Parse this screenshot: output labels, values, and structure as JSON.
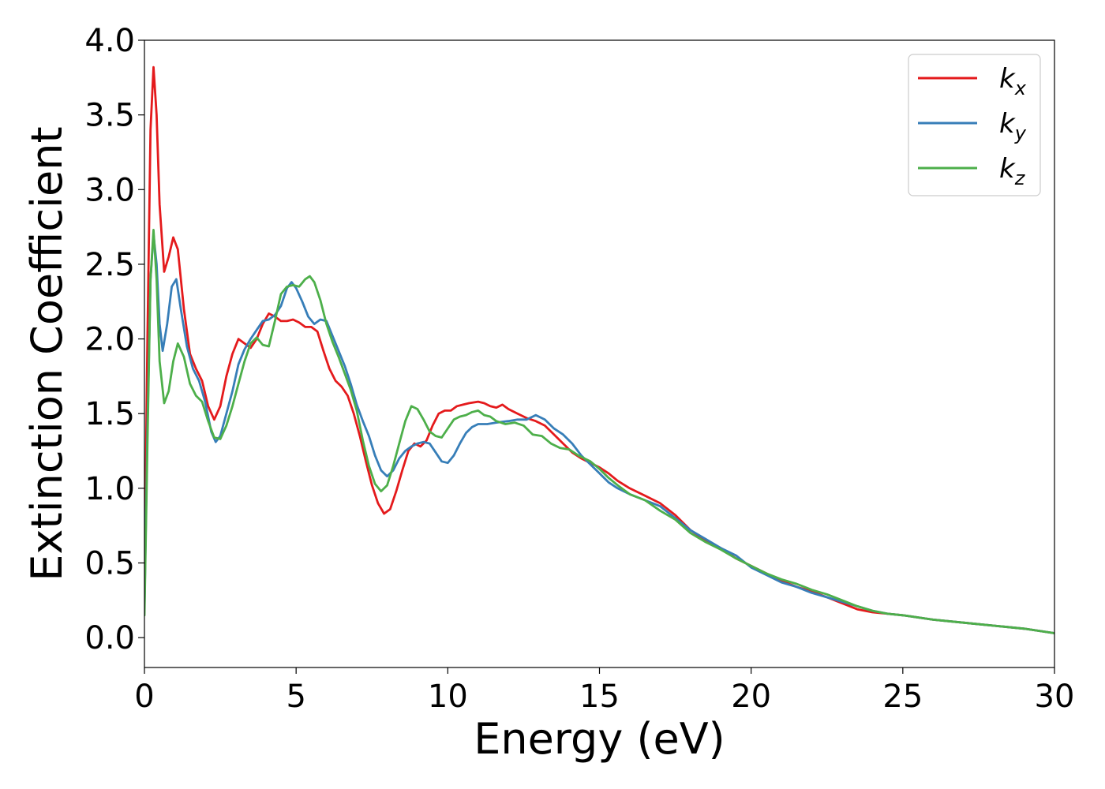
{
  "chart_data": {
    "type": "line",
    "title": "",
    "xlabel": "Energy (eV)",
    "ylabel": "Extinction Coefficient",
    "xlim": [
      0,
      30
    ],
    "ylim": [
      -0.2,
      4.0
    ],
    "xticks": [
      0,
      5,
      10,
      15,
      20,
      25,
      30
    ],
    "xtick_labels": [
      "0",
      "5",
      "10",
      "15",
      "20",
      "25",
      "30"
    ],
    "yticks": [
      0.0,
      0.5,
      1.0,
      1.5,
      2.0,
      2.5,
      3.0,
      3.5,
      4.0
    ],
    "ytick_labels": [
      "0.0",
      "0.5",
      "1.0",
      "1.5",
      "2.0",
      "2.5",
      "3.0",
      "3.5",
      "4.0"
    ],
    "grid": false,
    "legend_position": "top-right",
    "series": [
      {
        "name": "k",
        "subscript": "x",
        "color": "#e41a1c",
        "points": [
          [
            0,
            0.3
          ],
          [
            0.1,
            2.0
          ],
          [
            0.2,
            3.4
          ],
          [
            0.3,
            3.82
          ],
          [
            0.4,
            3.5
          ],
          [
            0.5,
            2.9
          ],
          [
            0.65,
            2.45
          ],
          [
            0.8,
            2.55
          ],
          [
            0.95,
            2.68
          ],
          [
            1.1,
            2.6
          ],
          [
            1.3,
            2.2
          ],
          [
            1.5,
            1.9
          ],
          [
            1.7,
            1.8
          ],
          [
            1.9,
            1.72
          ],
          [
            2.1,
            1.55
          ],
          [
            2.3,
            1.46
          ],
          [
            2.5,
            1.55
          ],
          [
            2.7,
            1.75
          ],
          [
            2.9,
            1.9
          ],
          [
            3.1,
            2.0
          ],
          [
            3.3,
            1.97
          ],
          [
            3.5,
            1.94
          ],
          [
            3.7,
            2.0
          ],
          [
            3.9,
            2.1
          ],
          [
            4.1,
            2.17
          ],
          [
            4.3,
            2.15
          ],
          [
            4.5,
            2.12
          ],
          [
            4.7,
            2.12
          ],
          [
            4.9,
            2.13
          ],
          [
            5.1,
            2.11
          ],
          [
            5.3,
            2.08
          ],
          [
            5.5,
            2.08
          ],
          [
            5.7,
            2.05
          ],
          [
            5.9,
            1.92
          ],
          [
            6.1,
            1.8
          ],
          [
            6.3,
            1.72
          ],
          [
            6.5,
            1.68
          ],
          [
            6.7,
            1.62
          ],
          [
            6.9,
            1.5
          ],
          [
            7.1,
            1.35
          ],
          [
            7.3,
            1.18
          ],
          [
            7.5,
            1.02
          ],
          [
            7.7,
            0.9
          ],
          [
            7.9,
            0.83
          ],
          [
            8.1,
            0.86
          ],
          [
            8.3,
            0.98
          ],
          [
            8.5,
            1.12
          ],
          [
            8.7,
            1.25
          ],
          [
            8.9,
            1.3
          ],
          [
            9.1,
            1.28
          ],
          [
            9.3,
            1.32
          ],
          [
            9.5,
            1.42
          ],
          [
            9.7,
            1.5
          ],
          [
            9.9,
            1.52
          ],
          [
            10.1,
            1.52
          ],
          [
            10.3,
            1.55
          ],
          [
            10.5,
            1.56
          ],
          [
            10.7,
            1.57
          ],
          [
            11.0,
            1.58
          ],
          [
            11.2,
            1.57
          ],
          [
            11.4,
            1.55
          ],
          [
            11.6,
            1.54
          ],
          [
            11.8,
            1.56
          ],
          [
            12.0,
            1.53
          ],
          [
            12.3,
            1.5
          ],
          [
            12.6,
            1.47
          ],
          [
            12.9,
            1.45
          ],
          [
            13.2,
            1.42
          ],
          [
            13.5,
            1.36
          ],
          [
            13.8,
            1.3
          ],
          [
            14.1,
            1.24
          ],
          [
            14.4,
            1.2
          ],
          [
            14.7,
            1.17
          ],
          [
            15.0,
            1.14
          ],
          [
            15.3,
            1.1
          ],
          [
            15.6,
            1.05
          ],
          [
            16.0,
            1.0
          ],
          [
            16.5,
            0.95
          ],
          [
            17.0,
            0.9
          ],
          [
            17.5,
            0.82
          ],
          [
            18.0,
            0.72
          ],
          [
            18.5,
            0.65
          ],
          [
            19.0,
            0.6
          ],
          [
            19.5,
            0.53
          ],
          [
            20.0,
            0.48
          ],
          [
            20.5,
            0.43
          ],
          [
            21.0,
            0.38
          ],
          [
            21.5,
            0.34
          ],
          [
            22.0,
            0.31
          ],
          [
            22.5,
            0.27
          ],
          [
            23.0,
            0.23
          ],
          [
            23.5,
            0.19
          ],
          [
            24.0,
            0.17
          ],
          [
            24.5,
            0.16
          ],
          [
            25.0,
            0.15
          ],
          [
            26.0,
            0.12
          ],
          [
            27.0,
            0.1
          ],
          [
            28.0,
            0.08
          ],
          [
            29.0,
            0.06
          ],
          [
            30.0,
            0.03
          ]
        ]
      },
      {
        "name": "k",
        "subscript": "y",
        "color": "#377eb8",
        "points": [
          [
            0,
            0.2
          ],
          [
            0.1,
            1.4
          ],
          [
            0.2,
            2.4
          ],
          [
            0.3,
            2.7
          ],
          [
            0.4,
            2.5
          ],
          [
            0.5,
            2.1
          ],
          [
            0.6,
            1.92
          ],
          [
            0.75,
            2.1
          ],
          [
            0.9,
            2.35
          ],
          [
            1.05,
            2.4
          ],
          [
            1.2,
            2.2
          ],
          [
            1.4,
            1.95
          ],
          [
            1.6,
            1.8
          ],
          [
            1.8,
            1.72
          ],
          [
            2.0,
            1.58
          ],
          [
            2.2,
            1.38
          ],
          [
            2.35,
            1.31
          ],
          [
            2.5,
            1.35
          ],
          [
            2.7,
            1.5
          ],
          [
            2.9,
            1.65
          ],
          [
            3.1,
            1.83
          ],
          [
            3.3,
            1.93
          ],
          [
            3.5,
            2.0
          ],
          [
            3.7,
            2.06
          ],
          [
            3.9,
            2.12
          ],
          [
            4.1,
            2.13
          ],
          [
            4.3,
            2.16
          ],
          [
            4.5,
            2.22
          ],
          [
            4.7,
            2.34
          ],
          [
            4.85,
            2.38
          ],
          [
            5.0,
            2.34
          ],
          [
            5.2,
            2.25
          ],
          [
            5.4,
            2.15
          ],
          [
            5.6,
            2.1
          ],
          [
            5.8,
            2.13
          ],
          [
            6.0,
            2.12
          ],
          [
            6.2,
            2.02
          ],
          [
            6.4,
            1.92
          ],
          [
            6.6,
            1.82
          ],
          [
            6.8,
            1.7
          ],
          [
            7.0,
            1.56
          ],
          [
            7.2,
            1.45
          ],
          [
            7.4,
            1.35
          ],
          [
            7.6,
            1.22
          ],
          [
            7.8,
            1.12
          ],
          [
            8.0,
            1.08
          ],
          [
            8.2,
            1.12
          ],
          [
            8.4,
            1.2
          ],
          [
            8.6,
            1.25
          ],
          [
            8.8,
            1.28
          ],
          [
            9.0,
            1.3
          ],
          [
            9.2,
            1.31
          ],
          [
            9.4,
            1.3
          ],
          [
            9.6,
            1.24
          ],
          [
            9.8,
            1.18
          ],
          [
            10.0,
            1.17
          ],
          [
            10.2,
            1.22
          ],
          [
            10.4,
            1.3
          ],
          [
            10.6,
            1.37
          ],
          [
            10.8,
            1.41
          ],
          [
            11.0,
            1.43
          ],
          [
            11.3,
            1.43
          ],
          [
            11.6,
            1.44
          ],
          [
            12.0,
            1.45
          ],
          [
            12.3,
            1.46
          ],
          [
            12.6,
            1.46
          ],
          [
            12.9,
            1.49
          ],
          [
            13.2,
            1.46
          ],
          [
            13.5,
            1.4
          ],
          [
            13.8,
            1.36
          ],
          [
            14.1,
            1.3
          ],
          [
            14.4,
            1.22
          ],
          [
            14.7,
            1.16
          ],
          [
            15.0,
            1.1
          ],
          [
            15.3,
            1.04
          ],
          [
            15.6,
            1.0
          ],
          [
            16.0,
            0.96
          ],
          [
            16.5,
            0.92
          ],
          [
            17.0,
            0.88
          ],
          [
            17.5,
            0.8
          ],
          [
            18.0,
            0.72
          ],
          [
            18.5,
            0.66
          ],
          [
            19.0,
            0.6
          ],
          [
            19.5,
            0.55
          ],
          [
            20.0,
            0.47
          ],
          [
            20.5,
            0.42
          ],
          [
            21.0,
            0.37
          ],
          [
            21.5,
            0.34
          ],
          [
            22.0,
            0.3
          ],
          [
            22.5,
            0.27
          ],
          [
            23.0,
            0.24
          ],
          [
            23.5,
            0.21
          ],
          [
            24.0,
            0.18
          ],
          [
            24.5,
            0.16
          ],
          [
            25.0,
            0.15
          ],
          [
            26.0,
            0.12
          ],
          [
            27.0,
            0.1
          ],
          [
            28.0,
            0.08
          ],
          [
            29.0,
            0.06
          ],
          [
            30.0,
            0.03
          ]
        ]
      },
      {
        "name": "k",
        "subscript": "z",
        "color": "#4daf4a",
        "points": [
          [
            0,
            0.15
          ],
          [
            0.1,
            1.3
          ],
          [
            0.2,
            2.4
          ],
          [
            0.3,
            2.73
          ],
          [
            0.4,
            2.4
          ],
          [
            0.5,
            1.85
          ],
          [
            0.65,
            1.57
          ],
          [
            0.8,
            1.65
          ],
          [
            0.95,
            1.85
          ],
          [
            1.1,
            1.97
          ],
          [
            1.3,
            1.88
          ],
          [
            1.5,
            1.7
          ],
          [
            1.7,
            1.62
          ],
          [
            1.9,
            1.58
          ],
          [
            2.1,
            1.45
          ],
          [
            2.3,
            1.34
          ],
          [
            2.5,
            1.33
          ],
          [
            2.7,
            1.42
          ],
          [
            2.9,
            1.55
          ],
          [
            3.1,
            1.7
          ],
          [
            3.3,
            1.85
          ],
          [
            3.5,
            1.97
          ],
          [
            3.7,
            2.01
          ],
          [
            3.9,
            1.96
          ],
          [
            4.1,
            1.95
          ],
          [
            4.3,
            2.12
          ],
          [
            4.5,
            2.3
          ],
          [
            4.7,
            2.35
          ],
          [
            4.9,
            2.36
          ],
          [
            5.1,
            2.35
          ],
          [
            5.3,
            2.4
          ],
          [
            5.45,
            2.42
          ],
          [
            5.6,
            2.38
          ],
          [
            5.8,
            2.26
          ],
          [
            6.0,
            2.1
          ],
          [
            6.2,
            1.98
          ],
          [
            6.4,
            1.88
          ],
          [
            6.6,
            1.77
          ],
          [
            6.8,
            1.66
          ],
          [
            7.0,
            1.52
          ],
          [
            7.2,
            1.32
          ],
          [
            7.4,
            1.15
          ],
          [
            7.6,
            1.03
          ],
          [
            7.8,
            0.98
          ],
          [
            8.0,
            1.02
          ],
          [
            8.2,
            1.15
          ],
          [
            8.4,
            1.3
          ],
          [
            8.6,
            1.45
          ],
          [
            8.8,
            1.55
          ],
          [
            9.0,
            1.53
          ],
          [
            9.2,
            1.46
          ],
          [
            9.4,
            1.38
          ],
          [
            9.6,
            1.35
          ],
          [
            9.8,
            1.34
          ],
          [
            10.0,
            1.4
          ],
          [
            10.2,
            1.46
          ],
          [
            10.4,
            1.48
          ],
          [
            10.6,
            1.49
          ],
          [
            10.8,
            1.51
          ],
          [
            11.0,
            1.52
          ],
          [
            11.2,
            1.49
          ],
          [
            11.4,
            1.48
          ],
          [
            11.6,
            1.45
          ],
          [
            11.9,
            1.43
          ],
          [
            12.2,
            1.44
          ],
          [
            12.5,
            1.42
          ],
          [
            12.8,
            1.36
          ],
          [
            13.1,
            1.35
          ],
          [
            13.4,
            1.3
          ],
          [
            13.7,
            1.27
          ],
          [
            14.0,
            1.26
          ],
          [
            14.3,
            1.22
          ],
          [
            14.7,
            1.18
          ],
          [
            15.0,
            1.13
          ],
          [
            15.3,
            1.07
          ],
          [
            15.6,
            1.02
          ],
          [
            16.0,
            0.96
          ],
          [
            16.5,
            0.92
          ],
          [
            17.0,
            0.85
          ],
          [
            17.5,
            0.79
          ],
          [
            18.0,
            0.7
          ],
          [
            18.5,
            0.64
          ],
          [
            19.0,
            0.59
          ],
          [
            19.5,
            0.53
          ],
          [
            20.0,
            0.48
          ],
          [
            20.5,
            0.43
          ],
          [
            21.0,
            0.39
          ],
          [
            21.5,
            0.36
          ],
          [
            22.0,
            0.32
          ],
          [
            22.5,
            0.29
          ],
          [
            23.0,
            0.25
          ],
          [
            23.5,
            0.21
          ],
          [
            24.0,
            0.18
          ],
          [
            24.5,
            0.16
          ],
          [
            25.0,
            0.15
          ],
          [
            26.0,
            0.12
          ],
          [
            27.0,
            0.1
          ],
          [
            28.0,
            0.08
          ],
          [
            29.0,
            0.06
          ],
          [
            30.0,
            0.03
          ]
        ]
      }
    ]
  }
}
